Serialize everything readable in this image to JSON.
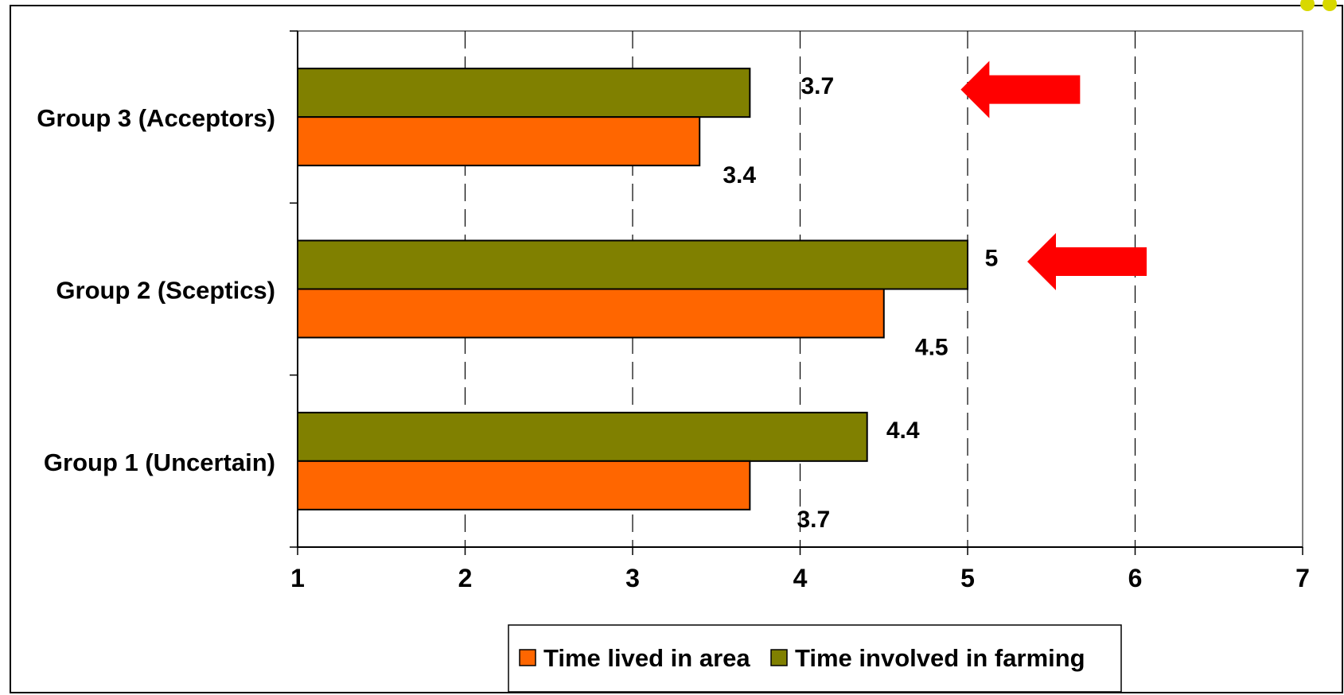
{
  "chart_data": {
    "type": "bar",
    "orientation": "horizontal",
    "categories": [
      "Group 3 (Acceptors)",
      "Group 2 (Sceptics)",
      "Group 1 (Uncertain)"
    ],
    "series": [
      {
        "name": "Time lived in area",
        "color": "#ff6600",
        "values": [
          3.4,
          4.5,
          3.7
        ]
      },
      {
        "name": "Time involved in farming",
        "color": "#808000",
        "values": [
          3.7,
          5,
          4.4
        ]
      }
    ],
    "xlim": [
      1,
      7
    ],
    "xticks": [
      1,
      2,
      3,
      4,
      5,
      6,
      7
    ],
    "grid": true,
    "legend": "bottom",
    "annotations": [
      {
        "type": "arrow",
        "color": "#ff0000",
        "points_to": "Group 3 (Acceptors) - Time involved in farming"
      },
      {
        "type": "arrow",
        "color": "#ff0000",
        "points_to": "Group 2 (Sceptics) - Time involved in farming"
      }
    ]
  }
}
